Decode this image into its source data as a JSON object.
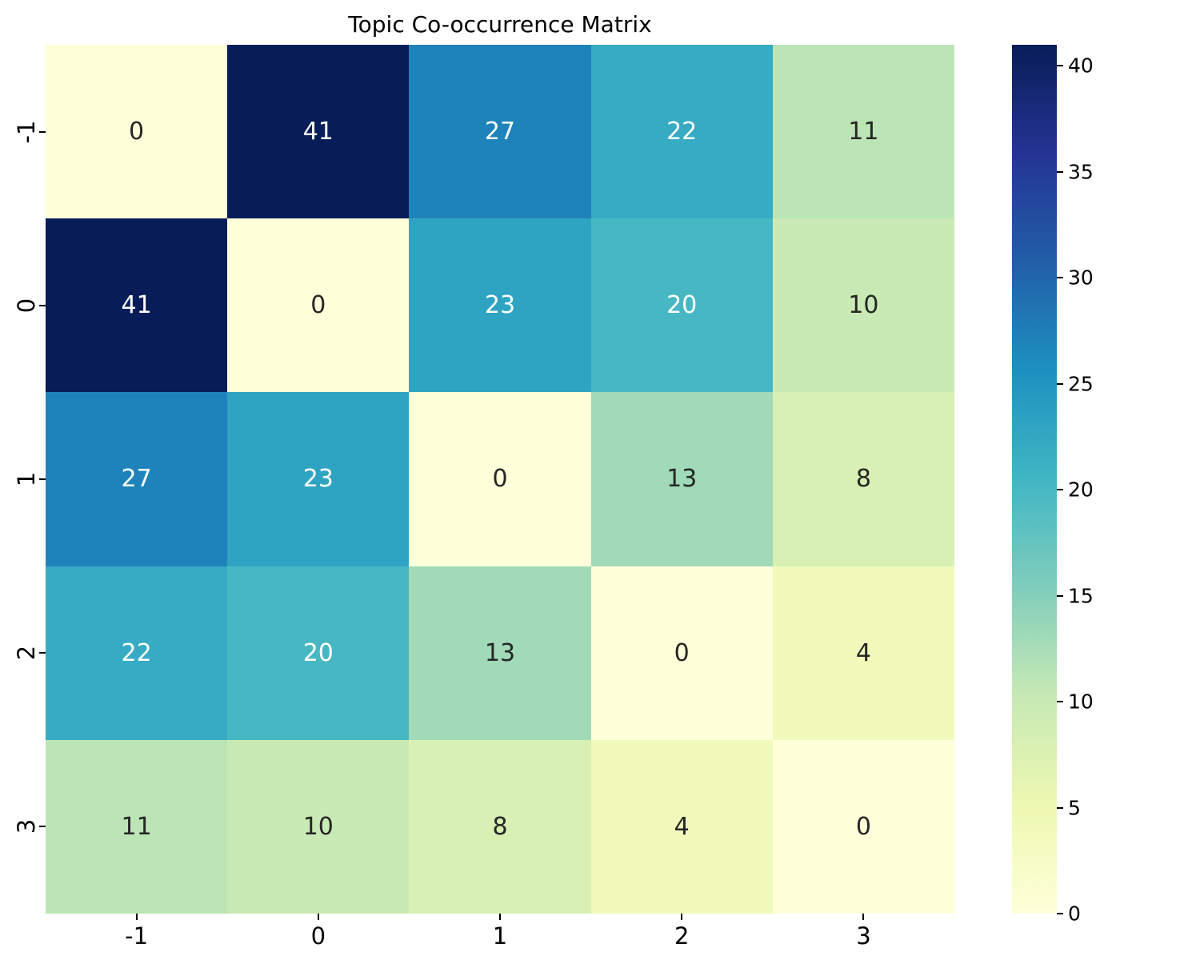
{
  "chart_data": {
    "type": "heatmap",
    "title": "Topic Co-occurrence Matrix",
    "x_categories": [
      "-1",
      "0",
      "1",
      "2",
      "3"
    ],
    "y_categories": [
      "-1",
      "0",
      "1",
      "2",
      "3"
    ],
    "matrix": [
      [
        0,
        41,
        27,
        22,
        11
      ],
      [
        41,
        0,
        23,
        20,
        10
      ],
      [
        27,
        23,
        0,
        13,
        8
      ],
      [
        22,
        20,
        13,
        0,
        4
      ],
      [
        11,
        10,
        8,
        4,
        0
      ]
    ],
    "vmin": 0,
    "vmax": 41,
    "colormap": "YlGnBu",
    "colormap_stops": [
      "#ffffd9",
      "#edf8b1",
      "#c7e9b4",
      "#7fcdbb",
      "#41b6c4",
      "#1d91c0",
      "#225ea8",
      "#253494",
      "#081d58"
    ],
    "colorbar_ticks": [
      0,
      5,
      10,
      15,
      20,
      25,
      30,
      35,
      40
    ],
    "annotation_color_light": "#ffffff",
    "annotation_color_dark": "#262626",
    "axis_color": "#000000",
    "legend_position": "right-colorbar",
    "grid": false
  }
}
